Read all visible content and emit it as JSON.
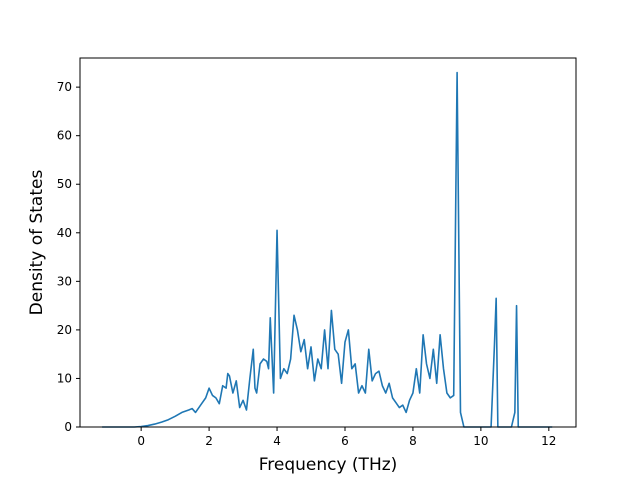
{
  "chart_data": {
    "type": "line",
    "title": "",
    "xlabel": "Frequency (THz)",
    "ylabel": "Density of States",
    "xlim": [
      -1.8,
      12.8
    ],
    "ylim": [
      0,
      76
    ],
    "xticks": [
      0,
      2,
      4,
      6,
      8,
      10,
      12
    ],
    "yticks": [
      0,
      10,
      20,
      30,
      40,
      50,
      60,
      70
    ],
    "grid": false,
    "line_color": "#1f77b4",
    "series": [
      {
        "x": [
          -1.15,
          -1.0,
          -0.8,
          -0.6,
          -0.4,
          -0.2,
          0.0,
          0.2,
          0.4,
          0.6,
          0.8,
          1.0,
          1.2,
          1.4,
          1.5,
          1.6,
          1.7,
          1.8,
          1.9,
          2.0,
          2.1,
          2.2,
          2.3,
          2.4,
          2.5,
          2.55,
          2.6,
          2.7,
          2.8,
          2.9,
          3.0,
          3.05,
          3.1,
          3.2,
          3.3,
          3.35,
          3.4,
          3.5,
          3.6,
          3.7,
          3.75,
          3.8,
          3.9,
          4.0,
          4.1,
          4.2,
          4.3,
          4.4,
          4.5,
          4.6,
          4.7,
          4.8,
          4.9,
          5.0,
          5.1,
          5.2,
          5.3,
          5.4,
          5.5,
          5.6,
          5.7,
          5.8,
          5.9,
          6.0,
          6.1,
          6.2,
          6.3,
          6.4,
          6.5,
          6.6,
          6.7,
          6.8,
          6.9,
          7.0,
          7.1,
          7.2,
          7.3,
          7.4,
          7.5,
          7.6,
          7.7,
          7.8,
          7.9,
          8.0,
          8.1,
          8.2,
          8.3,
          8.4,
          8.5,
          8.6,
          8.7,
          8.8,
          8.9,
          9.0,
          9.1,
          9.2,
          9.3,
          9.4,
          9.5,
          9.6,
          9.7,
          9.8,
          9.9,
          10.0,
          10.1,
          10.2,
          10.3,
          10.4,
          10.45,
          10.5,
          10.6,
          10.7,
          10.8,
          10.9,
          11.0,
          11.05,
          11.1,
          11.3,
          11.6,
          12.0,
          12.1
        ],
        "y": [
          0,
          0,
          0,
          0,
          0,
          0,
          0.1,
          0.3,
          0.6,
          1.0,
          1.5,
          2.2,
          3.0,
          3.5,
          3.8,
          3.0,
          4.0,
          5.0,
          6.0,
          8.0,
          6.5,
          6.0,
          4.8,
          8.5,
          8.0,
          11.0,
          10.5,
          7.0,
          9.5,
          4.0,
          5.5,
          4.5,
          3.5,
          10.0,
          16.0,
          8.0,
          7.0,
          13.0,
          14.0,
          13.5,
          12.0,
          22.5,
          7.0,
          40.5,
          10.0,
          12.0,
          11.0,
          14.0,
          23.0,
          20.0,
          15.5,
          18.0,
          12.0,
          16.5,
          9.5,
          14.0,
          12.0,
          20.0,
          12.0,
          24.0,
          16.0,
          15.0,
          9.0,
          17.5,
          20.0,
          12.0,
          13.0,
          7.0,
          8.5,
          7.0,
          16.0,
          9.5,
          11.0,
          11.5,
          8.5,
          7.0,
          9.0,
          6.0,
          5.0,
          4.0,
          4.5,
          3.0,
          5.5,
          7.0,
          12.0,
          7.0,
          19.0,
          13.0,
          10.0,
          16.0,
          9.0,
          19.0,
          12.0,
          7.0,
          6.0,
          6.5,
          73.0,
          3.0,
          0,
          0,
          0,
          0,
          0,
          0,
          0,
          0,
          0,
          17.0,
          26.5,
          0,
          0,
          0,
          0,
          0,
          3.0,
          25.0,
          0,
          0,
          0,
          0,
          0
        ]
      }
    ]
  }
}
